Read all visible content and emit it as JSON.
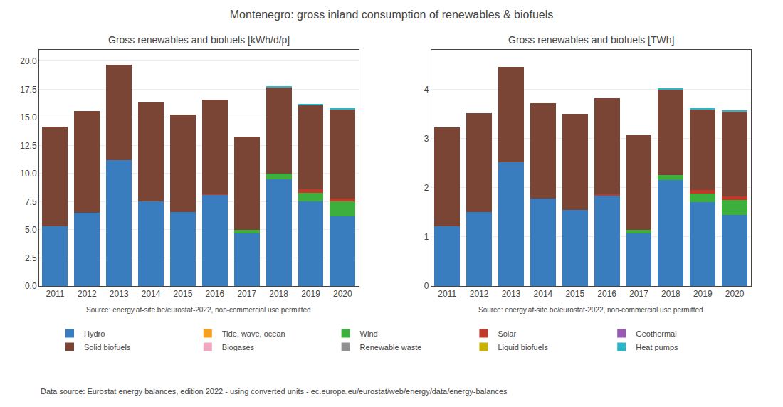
{
  "title": "Montenegro: gross inland consumption of renewables & biofuels",
  "annotations": [
    "Data source: Eurostat energy balances, edition 2022 - using converted units - ec.europa.eu/eurostat/web/energy/data/energy-balances"
  ],
  "chart_data": [
    {
      "type": "bar",
      "title": "Gross renewables and biofuels [kWh/d/p]",
      "categories": [
        "2011",
        "2012",
        "2013",
        "2014",
        "2015",
        "2016",
        "2017",
        "2018",
        "2019",
        "2020"
      ],
      "stacked": true,
      "grid": true,
      "legend": "bottom",
      "annotations": [
        "Source: energy.at-site.be/eurostat-2022, non-commercial use permitted"
      ],
      "ylim": [
        0,
        21
      ],
      "yticks": [
        {
          "value": 0,
          "label": "0.0"
        },
        2.5,
        {
          "value": 5,
          "label": "5.0"
        },
        7.5,
        {
          "value": 10,
          "label": "10.0"
        },
        12.5,
        {
          "value": 15,
          "label": "15.0"
        },
        17.5,
        {
          "value": 20,
          "label": "20.0"
        }
      ],
      "series": [
        {
          "name": "Hydro",
          "color": "#3a7dbf",
          "values": [
            5.3,
            6.5,
            11.2,
            7.5,
            6.6,
            8.1,
            4.7,
            9.5,
            7.5,
            6.2
          ]
        },
        {
          "name": "Tide, wave, ocean",
          "color": "#f5a020",
          "values": [
            0.0,
            0.0,
            0.0,
            0.0,
            0.0,
            0.0,
            0.0,
            0.0,
            0.0,
            0.0
          ]
        },
        {
          "name": "Wind",
          "color": "#3daf3d",
          "values": [
            0.0,
            0.0,
            0.0,
            0.0,
            0.0,
            0.0,
            0.3,
            0.5,
            0.8,
            1.3
          ]
        },
        {
          "name": "Solar",
          "color": "#c0392b",
          "values": [
            0.0,
            0.0,
            0.0,
            0.0,
            0.0,
            0.05,
            0.0,
            0.0,
            0.3,
            0.3
          ]
        },
        {
          "name": "Geothermal",
          "color": "#9b59b6",
          "values": [
            0.0,
            0.0,
            0.0,
            0.0,
            0.0,
            0.0,
            0.0,
            0.0,
            0.0,
            0.0
          ]
        },
        {
          "name": "Solid biofuels",
          "color": "#7b4535",
          "values": [
            8.85,
            9.05,
            8.5,
            8.85,
            8.65,
            8.45,
            8.3,
            7.65,
            7.5,
            7.9
          ]
        },
        {
          "name": "Biogases",
          "color": "#f1a7c1",
          "values": [
            0.0,
            0.0,
            0.0,
            0.0,
            0.0,
            0.0,
            0.0,
            0.0,
            0.0,
            0.0
          ]
        },
        {
          "name": "Renewable waste",
          "color": "#909090",
          "values": [
            0.0,
            0.0,
            0.0,
            0.0,
            0.0,
            0.0,
            0.0,
            0.0,
            0.0,
            0.0
          ]
        },
        {
          "name": "Liquid biofuels",
          "color": "#c8b400",
          "values": [
            0.0,
            0.0,
            0.0,
            0.0,
            0.0,
            0.0,
            0.0,
            0.0,
            0.0,
            0.0
          ]
        },
        {
          "name": "Heat pumps",
          "color": "#2ab5c8",
          "values": [
            0.0,
            0.0,
            0.0,
            0.0,
            0.0,
            0.0,
            0.0,
            0.1,
            0.1,
            0.1
          ]
        }
      ]
    },
    {
      "type": "bar",
      "title": "Gross renewables and biofuels [TWh]",
      "categories": [
        "2011",
        "2012",
        "2013",
        "2014",
        "2015",
        "2016",
        "2017",
        "2018",
        "2019",
        "2020"
      ],
      "stacked": true,
      "grid": true,
      "annotations": [
        "Source: energy.at-site.be/eurostat-2022, non-commercial use permitted"
      ],
      "ylim": [
        0,
        4.8
      ],
      "yticks": [
        0,
        1,
        2,
        3,
        4
      ],
      "series": [
        {
          "name": "Hydro",
          "color": "#3a7dbf",
          "values": [
            1.21,
            1.5,
            2.52,
            1.78,
            1.55,
            1.85,
            1.07,
            2.15,
            1.7,
            1.45
          ]
        },
        {
          "name": "Tide, wave, ocean",
          "color": "#f5a020",
          "values": [
            0.0,
            0.0,
            0.0,
            0.0,
            0.0,
            0.0,
            0.0,
            0.0,
            0.0,
            0.0
          ]
        },
        {
          "name": "Wind",
          "color": "#3daf3d",
          "values": [
            0.0,
            0.0,
            0.0,
            0.0,
            0.0,
            0.0,
            0.07,
            0.11,
            0.18,
            0.3
          ]
        },
        {
          "name": "Solar",
          "color": "#c0392b",
          "values": [
            0.0,
            0.0,
            0.0,
            0.0,
            0.0,
            0.012,
            0.0,
            0.0,
            0.068,
            0.068
          ]
        },
        {
          "name": "Geothermal",
          "color": "#9b59b6",
          "values": [
            0.0,
            0.0,
            0.0,
            0.0,
            0.0,
            0.0,
            0.0,
            0.0,
            0.0,
            0.0
          ]
        },
        {
          "name": "Solid biofuels",
          "color": "#7b4535",
          "values": [
            2.01,
            2.01,
            1.93,
            1.93,
            1.95,
            1.95,
            1.93,
            1.74,
            1.64,
            1.73
          ]
        },
        {
          "name": "Biogases",
          "color": "#f1a7c1",
          "values": [
            0.0,
            0.0,
            0.0,
            0.0,
            0.0,
            0.0,
            0.0,
            0.0,
            0.0,
            0.0
          ]
        },
        {
          "name": "Renewable waste",
          "color": "#909090",
          "values": [
            0.0,
            0.0,
            0.0,
            0.0,
            0.0,
            0.0,
            0.0,
            0.0,
            0.0,
            0.0
          ]
        },
        {
          "name": "Liquid biofuels",
          "color": "#c8b400",
          "values": [
            0.0,
            0.0,
            0.0,
            0.0,
            0.0,
            0.0,
            0.0,
            0.0,
            0.0,
            0.0
          ]
        },
        {
          "name": "Heat pumps",
          "color": "#2ab5c8",
          "values": [
            0.0,
            0.0,
            0.0,
            0.0,
            0.0,
            0.0,
            0.0,
            0.023,
            0.023,
            0.023
          ]
        }
      ]
    }
  ]
}
